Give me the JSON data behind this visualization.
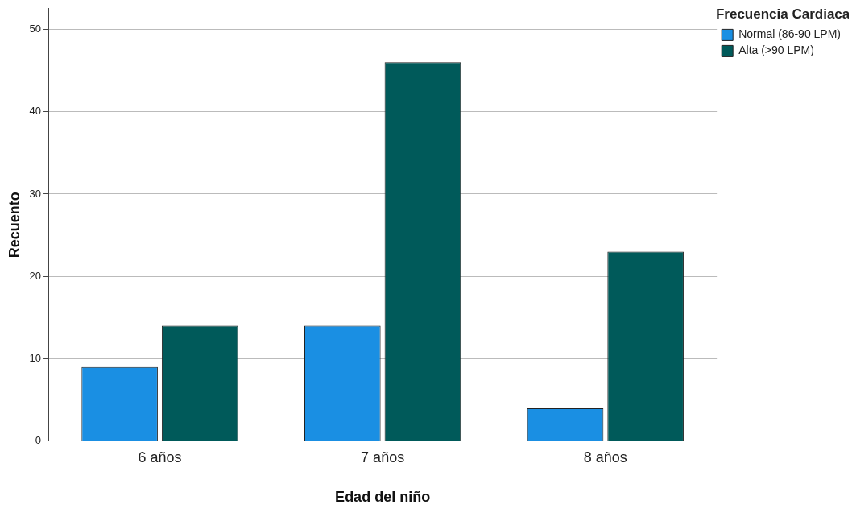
{
  "chart_data": {
    "type": "bar",
    "xlabel": "Edad del niño",
    "ylabel": "Recuento",
    "legend_title": "Frecuencia Cardiaca",
    "categories": [
      "6 años",
      "7 años",
      "8 años"
    ],
    "series": [
      {
        "name": "Normal (86-90 LPM)",
        "color": "#1a8fe3",
        "values": [
          9,
          14,
          4
        ]
      },
      {
        "name": "Alta (>90 LPM)",
        "color": "#005a5a",
        "values": [
          14,
          46,
          23
        ]
      }
    ],
    "ylim": [
      0,
      52.5
    ],
    "yticks": [
      0,
      10,
      20,
      30,
      40,
      50
    ],
    "grid": "y",
    "legend": "top right"
  }
}
